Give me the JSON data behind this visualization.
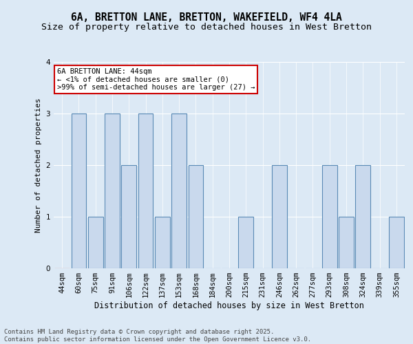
{
  "title": "6A, BRETTON LANE, BRETTON, WAKEFIELD, WF4 4LA",
  "subtitle": "Size of property relative to detached houses in West Bretton",
  "xlabel": "Distribution of detached houses by size in West Bretton",
  "ylabel": "Number of detached properties",
  "categories": [
    "44sqm",
    "60sqm",
    "75sqm",
    "91sqm",
    "106sqm",
    "122sqm",
    "137sqm",
    "153sqm",
    "168sqm",
    "184sqm",
    "200sqm",
    "215sqm",
    "231sqm",
    "246sqm",
    "262sqm",
    "277sqm",
    "293sqm",
    "308sqm",
    "324sqm",
    "339sqm",
    "355sqm"
  ],
  "values": [
    0,
    3,
    1,
    3,
    2,
    3,
    1,
    3,
    2,
    0,
    0,
    1,
    0,
    2,
    0,
    0,
    2,
    1,
    2,
    0,
    1
  ],
  "bar_color": "#c9d9ed",
  "bar_edge_color": "#5a8ab5",
  "highlight_bar_index": 0,
  "highlight_color": "#ffcccc",
  "highlight_edge_color": "#cc0000",
  "annotation_text": "6A BRETTON LANE: 44sqm\n← <1% of detached houses are smaller (0)\n>99% of semi-detached houses are larger (27) →",
  "annotation_box_edge_color": "#cc0000",
  "annotation_box_face_color": "#ffffff",
  "ylim": [
    0,
    4
  ],
  "yticks": [
    0,
    1,
    2,
    3,
    4
  ],
  "background_color": "#dce9f5",
  "plot_bg_color": "#dce9f5",
  "footer": "Contains HM Land Registry data © Crown copyright and database right 2025.\nContains public sector information licensed under the Open Government Licence v3.0.",
  "title_fontsize": 10.5,
  "subtitle_fontsize": 9.5,
  "xlabel_fontsize": 8.5,
  "ylabel_fontsize": 8,
  "tick_fontsize": 7.5,
  "footer_fontsize": 6.5,
  "annotation_fontsize": 7.5
}
